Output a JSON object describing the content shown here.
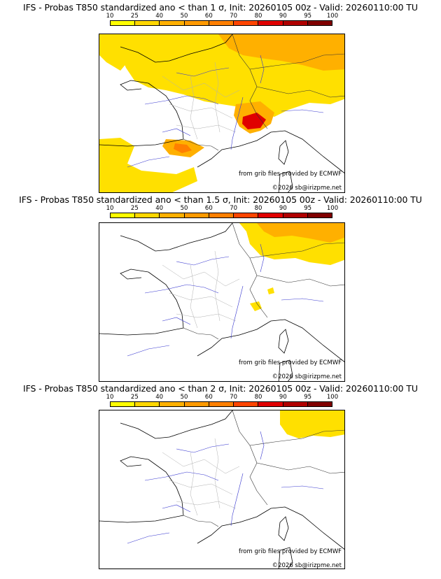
{
  "colorbar": {
    "ticks": [
      "10",
      "25",
      "40",
      "50",
      "60",
      "70",
      "80",
      "90",
      "95",
      "100"
    ],
    "colors": [
      "#ffff00",
      "#ffd700",
      "#ffb000",
      "#ff9a00",
      "#ff7f00",
      "#ff4500",
      "#e00000",
      "#b00000",
      "#800000"
    ]
  },
  "panels": [
    {
      "title": "IFS - Probas T850  standardized ano < than 1 σ, Init: 20260105 00z - Valid: 20260110:00 TU",
      "credit": "from grib files provided by ECMWF",
      "copyright": "©2026 sb@irizpme.net"
    },
    {
      "title": "IFS - Probas T850  standardized ano < than 1.5 σ, Init: 20260105 00z - Valid: 20260110:00 TU",
      "credit": "from grib files provided by ECMWF",
      "copyright": "©2026 sb@irizpme.net"
    },
    {
      "title": "IFS - Probas T850  standardized ano < than 2 σ, Init: 20260105 00z - Valid: 20260110:00 TU",
      "credit": "from grib files provided by ECMWF",
      "copyright": "©2026 sb@irizpme.net"
    }
  ]
}
